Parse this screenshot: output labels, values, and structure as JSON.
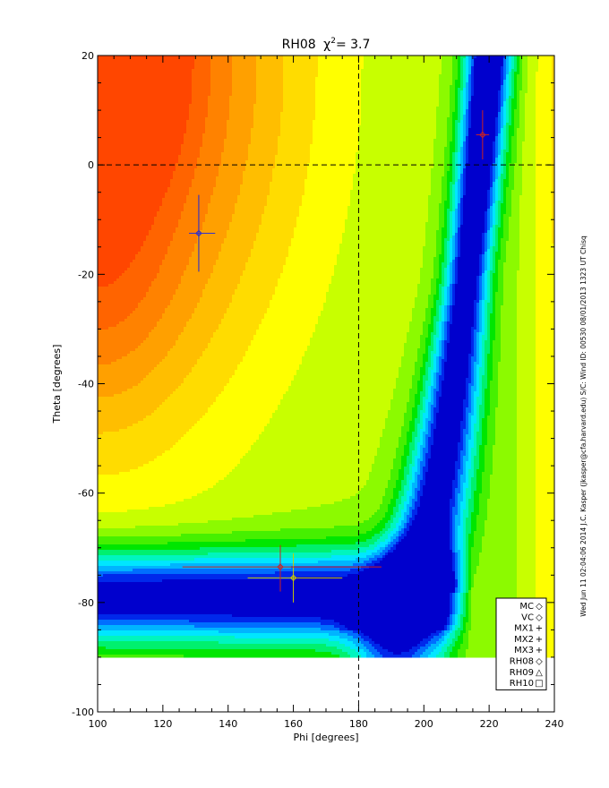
{
  "chart_data": {
    "type": "heatmap",
    "title_text": "RH08",
    "title_chi": "χ",
    "title_sup": "2",
    "title_value": "=   3.7",
    "xlabel": "Phi [degrees]",
    "ylabel": "Theta [degrees]",
    "xlim": [
      100,
      240
    ],
    "ylim": [
      -100,
      20
    ],
    "x_ticks": [
      100,
      120,
      140,
      160,
      180,
      200,
      220,
      240
    ],
    "y_ticks": [
      20,
      0,
      -20,
      -40,
      -60,
      -80,
      -100
    ],
    "reference_lines": {
      "phi": 180,
      "theta": 0
    },
    "filled_region_theta_min": -90,
    "colormap": "rainbow: low chi-square blue, high chi-square red",
    "minimum_valley": "blue valley near theta -80 (phi 100-190) curving up to phi ~218, theta 0-20",
    "points": [
      {
        "name": "MC",
        "phi": 131.0,
        "theta": -12.5,
        "phi_err": [
          128,
          136
        ],
        "theta_err": [
          -19.5,
          -5.5
        ],
        "color": "#1f1f8f"
      },
      {
        "name": "VC",
        "phi": 131.0,
        "theta": -12.5,
        "phi_err": [
          128,
          136
        ],
        "theta_err": [
          -19.5,
          -5.5
        ],
        "color": "#3333cc"
      },
      {
        "name": "RH08",
        "phi": 160.0,
        "theta": -75.5,
        "phi_err": [
          146,
          175
        ],
        "theta_err": [
          -80,
          -71
        ],
        "color": "#cccc00"
      },
      {
        "name": "RH09",
        "phi": 156.0,
        "theta": -73.5,
        "phi_err": [
          126,
          187
        ],
        "theta_err": [
          -78,
          -69.5
        ],
        "color": "#cc2222"
      },
      {
        "name": "RH10",
        "phi": 218.0,
        "theta": 5.5,
        "phi_err": [
          216,
          220
        ],
        "theta_err": [
          1,
          10
        ],
        "color": "#cc2222"
      }
    ],
    "legend": [
      {
        "label": "MC",
        "symbol": "◇",
        "color": "#000000"
      },
      {
        "label": "VC",
        "symbol": "◇",
        "color": "#000000"
      },
      {
        "label": "MX1",
        "symbol": "+",
        "color": "#00cc00"
      },
      {
        "label": "MX2",
        "symbol": "+",
        "color": "#00cc00"
      },
      {
        "label": "MX3",
        "symbol": "+",
        "color": "#00cc00"
      },
      {
        "label": "RH08",
        "symbol": "◇",
        "color": "#e6b800"
      },
      {
        "label": "RH09",
        "symbol": "△",
        "color": "#e03010"
      },
      {
        "label": "RH10",
        "symbol": "□",
        "color": "#e03010"
      }
    ],
    "legend_placement": "bottom-right",
    "side_annotation": "Wed Jun 11 02:04:06 2014   J.C. Kasper (jkasper@cfa.harvard.edu)   S/C: Wind  ID: 00530 08/01/2013   1323 UT Chisq"
  }
}
